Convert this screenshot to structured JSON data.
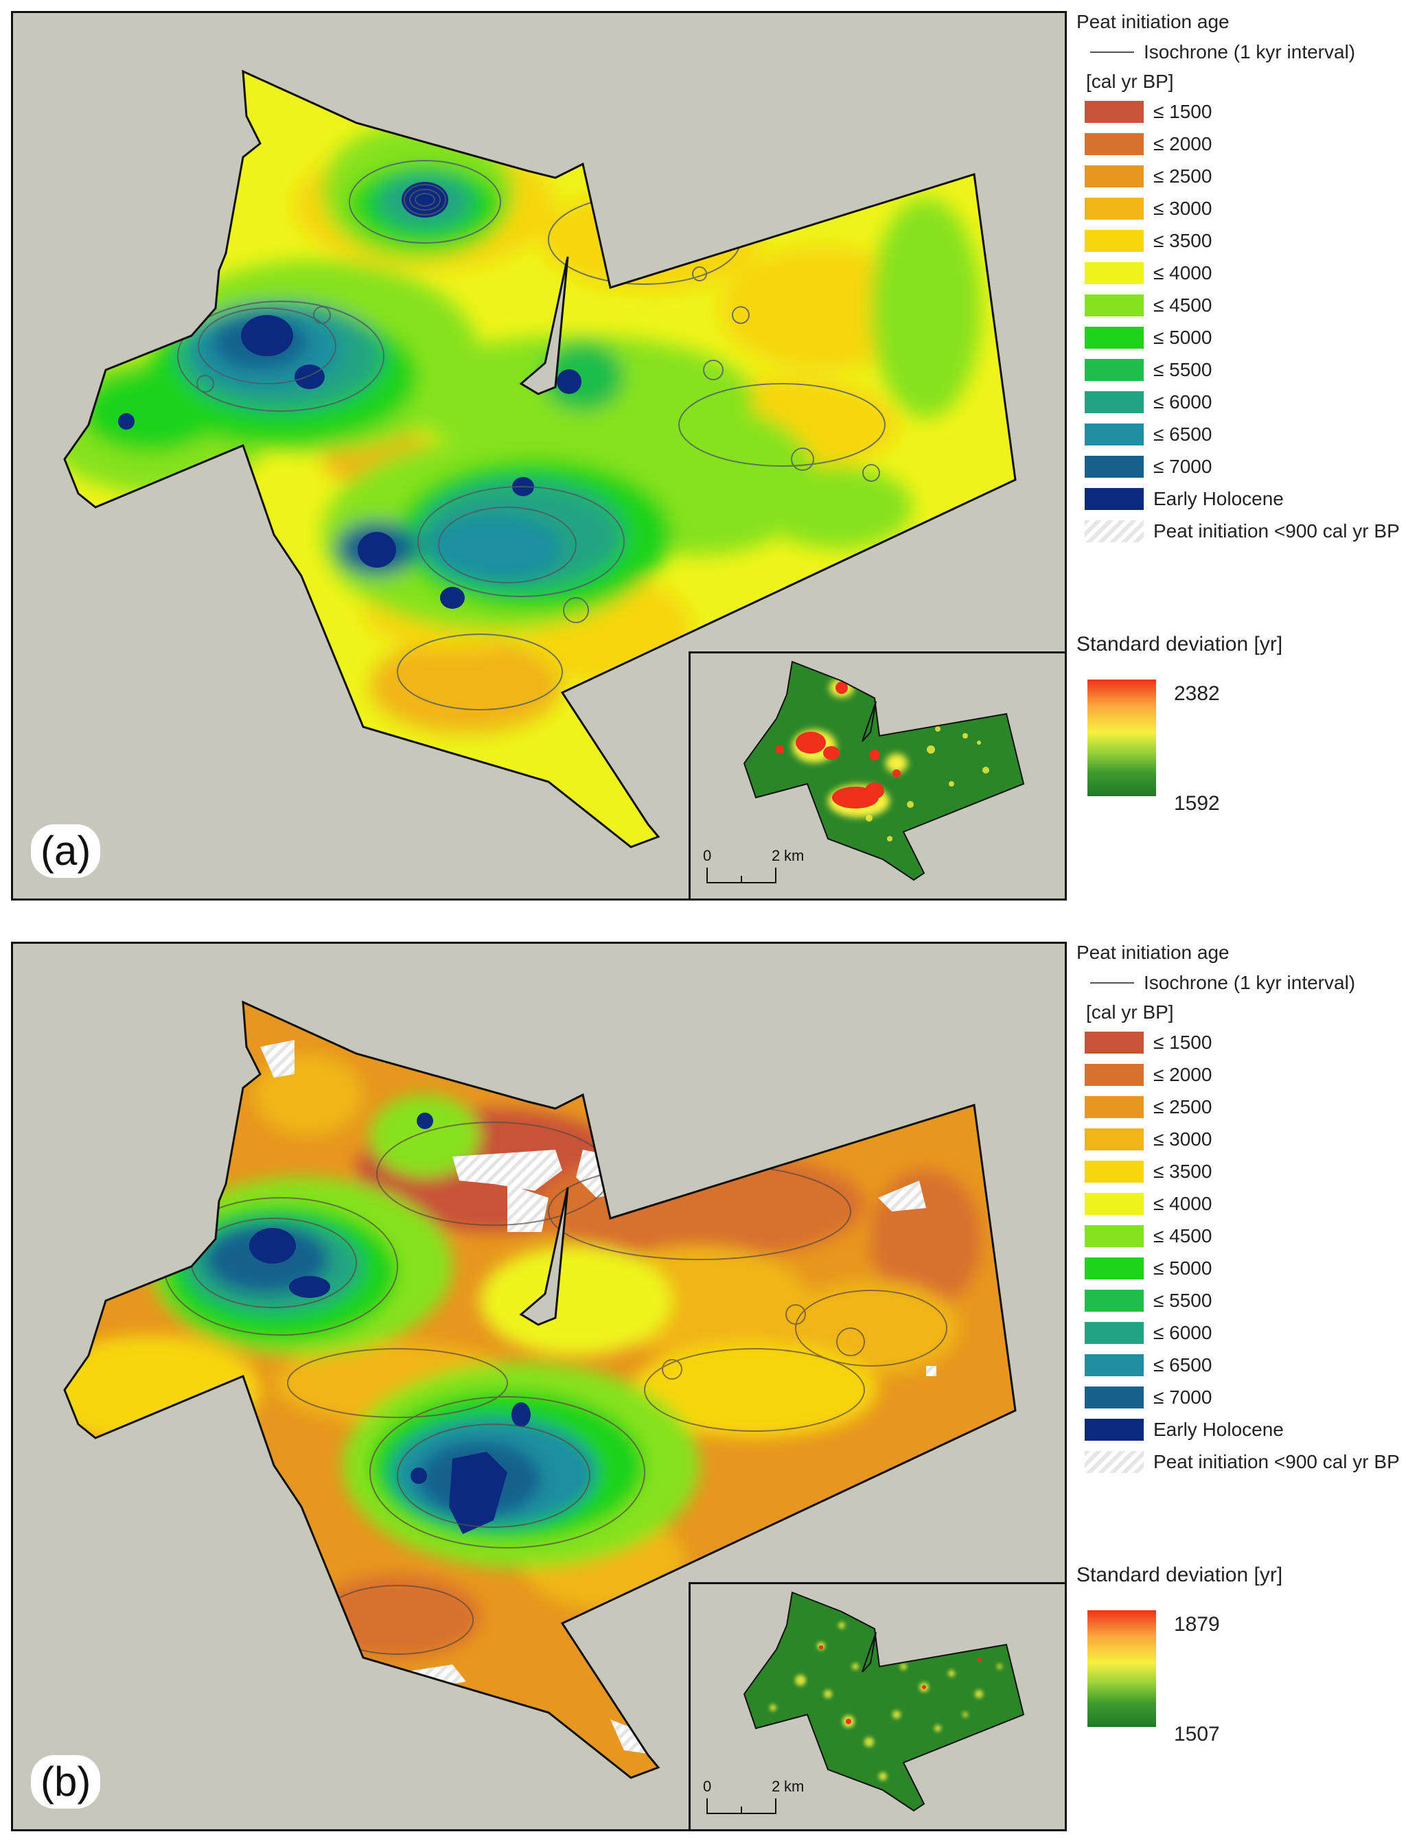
{
  "legend": {
    "title": "Peat initiation age",
    "isochrone_label": "Isochrone (1 kyr interval)",
    "units": "[cal yr BP]",
    "classes": [
      {
        "label": "≤ 1500",
        "color": "#c85338"
      },
      {
        "label": "≤ 2000",
        "color": "#d8702e"
      },
      {
        "label": "≤ 2500",
        "color": "#e7961f"
      },
      {
        "label": "≤ 3000",
        "color": "#f0b517"
      },
      {
        "label": "≤ 3500",
        "color": "#f7d60d"
      },
      {
        "label": "≤ 4000",
        "color": "#eef41a"
      },
      {
        "label": "≤ 4500",
        "color": "#86e21c"
      },
      {
        "label": "≤ 5000",
        "color": "#1ed31a"
      },
      {
        "label": "≤ 5500",
        "color": "#1fbd4c"
      },
      {
        "label": "≤ 6000",
        "color": "#22a481"
      },
      {
        "label": "≤ 6500",
        "color": "#1f8fa0"
      },
      {
        "label": "≤ 7000",
        "color": "#17608e"
      },
      {
        "label": "Early Holocene",
        "color": "#0b2a7f"
      }
    ],
    "hatch_label": "Peat initiation <900 cal yr BP"
  },
  "panels": [
    {
      "label": "(a)",
      "sd_title": "Standard deviation [yr]",
      "sd_max": "2382",
      "sd_min": "1592",
      "scale": {
        "zero": "0",
        "two": "2",
        "unit": "km"
      }
    },
    {
      "label": "(b)",
      "sd_title": "Standard deviation [yr]",
      "sd_max": "1879",
      "sd_min": "1507",
      "scale": {
        "zero": "0",
        "two": "2",
        "unit": "km"
      }
    }
  ]
}
